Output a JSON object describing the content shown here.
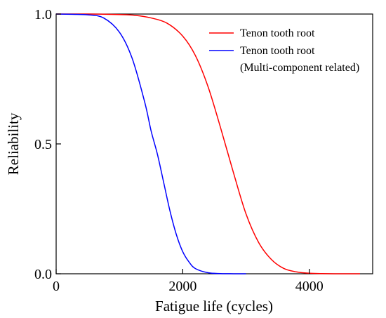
{
  "chart_data": {
    "type": "line",
    "xlabel": "Fatigue life (cycles)",
    "ylabel": "Reliability",
    "xlim": [
      0,
      5000
    ],
    "ylim": [
      0,
      1
    ],
    "x_ticks": [
      0,
      2000,
      4000
    ],
    "x_tick_labels": [
      "0",
      "2000",
      "4000"
    ],
    "y_ticks": [
      0,
      0.5,
      1
    ],
    "y_tick_labels": [
      "0.0",
      "0.5",
      "1.0"
    ],
    "grid": false,
    "legend": {
      "placement": "top-right",
      "entries": [
        {
          "label": "Tenon tooth root",
          "color": "#ff0000"
        },
        {
          "label": "Tenon tooth root",
          "sublabel": "(Multi-component related)",
          "color": "#0000ff"
        }
      ]
    },
    "series": [
      {
        "name": "Tenon tooth root",
        "color": "#ff0000",
        "x": [
          0,
          500,
          1000,
          1250,
          1500,
          1750,
          2000,
          2200,
          2400,
          2600,
          2800,
          3000,
          3200,
          3400,
          3600,
          3800,
          4000,
          4200,
          4500,
          4800
        ],
        "y": [
          1.0,
          1.0,
          0.998,
          0.995,
          0.985,
          0.965,
          0.915,
          0.84,
          0.72,
          0.56,
          0.39,
          0.23,
          0.12,
          0.055,
          0.02,
          0.007,
          0.002,
          0.0005,
          0.0,
          0.0
        ]
      },
      {
        "name": "Tenon tooth root (Multi-component related)",
        "color": "#0000ff",
        "x": [
          0,
          250,
          500,
          750,
          1000,
          1200,
          1400,
          1500,
          1600,
          1700,
          1800,
          1900,
          2000,
          2100,
          2200,
          2400,
          2600,
          2800,
          3000
        ],
        "y": [
          1.0,
          0.999,
          0.997,
          0.985,
          0.93,
          0.83,
          0.66,
          0.55,
          0.46,
          0.35,
          0.24,
          0.15,
          0.085,
          0.045,
          0.02,
          0.004,
          0.0008,
          0.0001,
          0.0
        ]
      }
    ]
  }
}
